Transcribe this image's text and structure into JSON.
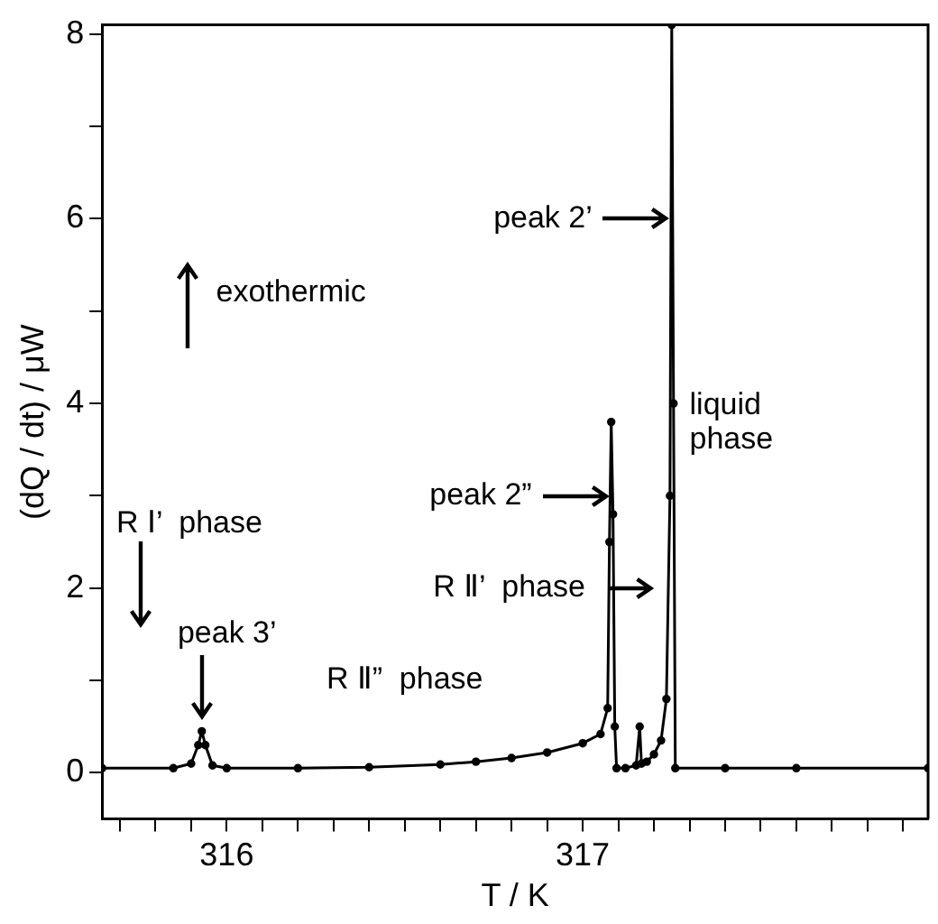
{
  "chart_data": {
    "type": "line",
    "xlabel": "T / K",
    "ylabel": "(dQ / dt) / μW",
    "x": [
      315.65,
      315.85,
      315.9,
      315.92,
      315.93,
      315.94,
      315.96,
      316.0,
      316.2,
      316.4,
      316.6,
      316.7,
      316.8,
      316.9,
      317.0,
      317.05,
      317.07,
      317.075,
      317.08,
      317.085,
      317.09,
      317.095,
      317.12,
      317.15,
      317.16,
      317.165,
      317.18,
      317.2,
      317.22,
      317.235,
      317.245,
      317.25,
      317.255,
      317.26,
      317.4,
      317.6,
      317.97
    ],
    "series": [
      {
        "color": "#000000",
        "values": [
          0.05,
          0.05,
          0.1,
          0.3,
          0.45,
          0.3,
          0.08,
          0.05,
          0.05,
          0.06,
          0.09,
          0.12,
          0.16,
          0.22,
          0.32,
          0.42,
          0.7,
          2.5,
          3.8,
          2.8,
          0.5,
          0.05,
          0.05,
          0.08,
          0.5,
          0.1,
          0.12,
          0.2,
          0.35,
          0.8,
          3,
          8.1,
          4,
          0.05,
          0.05,
          0.05,
          0.05
        ]
      }
    ],
    "xlim": [
      315.65,
      317.97
    ],
    "ylim": [
      -0.5,
      8.1
    ],
    "xticks": [
      {
        "value": 315.7,
        "label": null
      },
      {
        "value": 315.8,
        "label": null
      },
      {
        "value": 315.9,
        "label": null
      },
      316,
      {
        "value": 316.1,
        "label": null
      },
      {
        "value": 316.2,
        "label": null
      },
      {
        "value": 316.3,
        "label": null
      },
      {
        "value": 316.4,
        "label": null
      },
      {
        "value": 316.5,
        "label": null
      },
      {
        "value": 316.6,
        "label": null
      },
      {
        "value": 316.7,
        "label": null
      },
      {
        "value": 316.8,
        "label": null
      },
      {
        "value": 316.9,
        "label": null
      },
      317,
      {
        "value": 317.1,
        "label": null
      },
      {
        "value": 317.2,
        "label": null
      },
      {
        "value": 317.3,
        "label": null
      },
      {
        "value": 317.4,
        "label": null
      },
      {
        "value": 317.5,
        "label": null
      },
      {
        "value": 317.6,
        "label": null
      },
      {
        "value": 317.7,
        "label": null
      },
      {
        "value": 317.8,
        "label": null
      },
      {
        "value": 317.9,
        "label": null
      }
    ],
    "yticks": [
      0,
      {
        "value": 1,
        "label": null
      },
      2,
      {
        "value": 3,
        "label": null
      },
      4,
      {
        "value": 5,
        "label": null
      },
      6,
      {
        "value": 7,
        "label": null
      },
      8
    ],
    "grid": false,
    "legend": false,
    "marker": "circle",
    "line_style": "solid",
    "annotations": [
      "exothermic",
      "R Ⅰ’  phase",
      "R Ⅱ”  phase",
      "R Ⅱ’  phase",
      "liquid phase",
      {
        "text": "peak 2’",
        "x": 317.25,
        "y": 6
      },
      {
        "text": "peak 2”",
        "x": 317.08,
        "y": 3
      },
      {
        "text": "peak 3’",
        "x": 315.93,
        "y": 0.45
      }
    ]
  }
}
